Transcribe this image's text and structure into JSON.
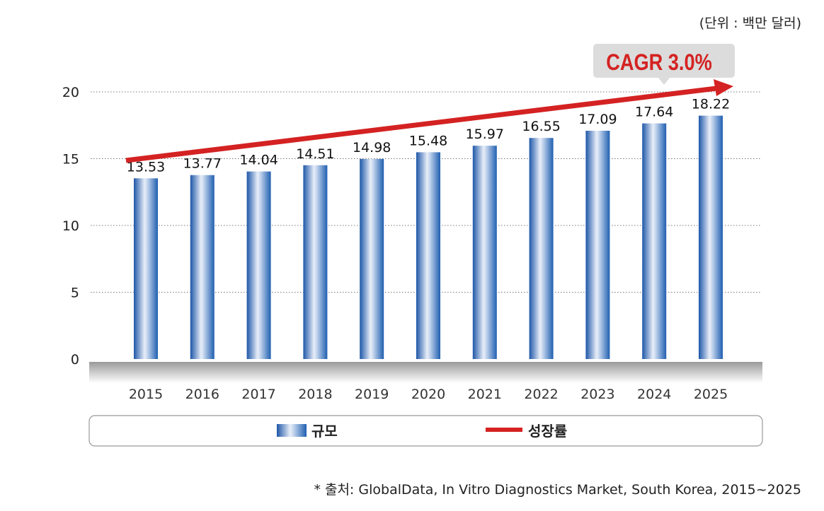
{
  "unit_note": "(단위 : 백만 달러)",
  "source_note": "* 출처: GlobalData, In Vitro Diagnostics Market, South Korea, 2015~2025",
  "chart_data": {
    "type": "bar",
    "categories": [
      "2015",
      "2016",
      "2017",
      "2018",
      "2019",
      "2020",
      "2021",
      "2022",
      "2023",
      "2024",
      "2025"
    ],
    "series": [
      {
        "name": "규모",
        "values": [
          13.53,
          13.77,
          14.04,
          14.51,
          14.98,
          15.48,
          15.97,
          16.55,
          17.09,
          17.64,
          18.22
        ],
        "color": "#1f5fb0"
      },
      {
        "name": "성장률",
        "type": "trend-arrow",
        "color": "#d42222"
      }
    ],
    "annotation": "CAGR 3.0%",
    "ylim": [
      0,
      20
    ],
    "yticks": [
      0,
      5,
      10,
      15,
      20
    ],
    "grid": true,
    "legend_position": "bottom"
  }
}
